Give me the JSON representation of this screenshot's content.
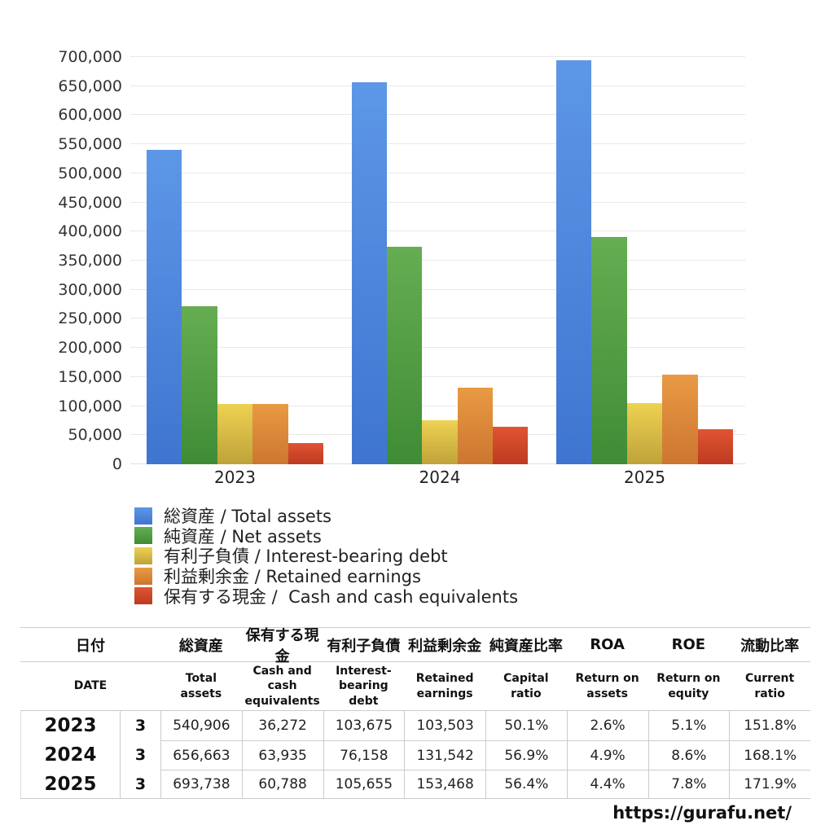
{
  "chart_data": {
    "type": "bar",
    "categories": [
      "2023",
      "2024",
      "2025"
    ],
    "series": [
      {
        "label": "総資産 / Total assets",
        "color_top": "#5d97e7",
        "color_bottom": "#3f75d0",
        "values": [
          540906,
          656663,
          693738
        ]
      },
      {
        "label": "純資産 / Net assets",
        "color_top": "#66ad52",
        "color_bottom": "#3f8c36",
        "values": [
          271000,
          373600,
          391300
        ]
      },
      {
        "label": "有利子負債 / Interest-bearing debt",
        "color_top": "#edd252",
        "color_bottom": "#bfa23a",
        "values": [
          103675,
          76158,
          105655
        ]
      },
      {
        "label": "利益剰余金 / Retained earnings",
        "color_top": "#e99a43",
        "color_bottom": "#cc7630",
        "values": [
          103503,
          131542,
          153468
        ]
      },
      {
        "label": "保有する現金 /  Cash and cash equivalents",
        "color_top": "#e05433",
        "color_bottom": "#bd3a20",
        "values": [
          36272,
          63935,
          60788
        ]
      }
    ],
    "ylim": [
      0,
      700000
    ],
    "ytick_step": 50000,
    "yticks": [
      0,
      50000,
      100000,
      150000,
      200000,
      250000,
      300000,
      350000,
      400000,
      450000,
      500000,
      550000,
      600000,
      650000,
      700000
    ],
    "grid": true,
    "legend_position": "bottom-left",
    "title": "",
    "xlabel": "",
    "ylabel": ""
  },
  "table": {
    "header_ja": [
      "日付",
      "総資産",
      "保有する現金",
      "有利子負債",
      "利益剰余金",
      "純資産比率",
      "ROA",
      "ROE",
      "流動比率"
    ],
    "header_en": [
      "DATE",
      "Total assets",
      "Cash and cash equivalents",
      "Interest-bearing debt",
      "Retained earnings",
      "Capital ratio",
      "Return on assets",
      "Return on equity",
      "Current ratio"
    ],
    "rows": [
      {
        "year": "2023",
        "month": "3",
        "values": [
          "540,906",
          "36,272",
          "103,675",
          "103,503",
          "50.1%",
          "2.6%",
          "5.1%",
          "151.8%"
        ]
      },
      {
        "year": "2024",
        "month": "3",
        "values": [
          "656,663",
          "63,935",
          "76,158",
          "131,542",
          "56.9%",
          "4.9%",
          "8.6%",
          "168.1%"
        ]
      },
      {
        "year": "2025",
        "month": "3",
        "values": [
          "693,738",
          "60,788",
          "105,655",
          "153,468",
          "56.4%",
          "4.4%",
          "7.8%",
          "171.9%"
        ]
      }
    ]
  },
  "footer": {
    "url": "https://gurafu.net/"
  }
}
